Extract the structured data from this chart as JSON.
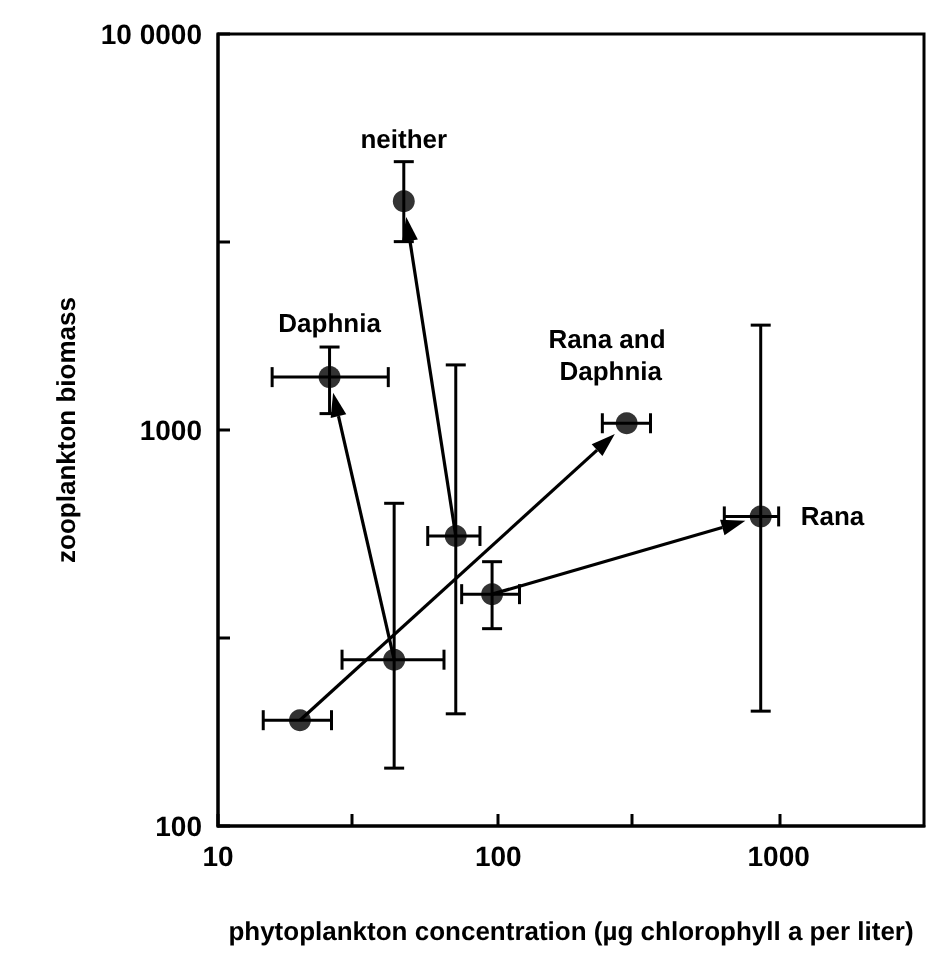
{
  "chart_data": {
    "type": "scatter",
    "xlabel": "phytoplankton concentration (µg chlorophyll a per liter)",
    "ylabel": "zooplankton biomass",
    "x": [
      46,
      25,
      287,
      863,
      70.5,
      95,
      42.5,
      19.6
    ],
    "values": [
      3780,
      1360,
      1040,
      605,
      540,
      385,
      263,
      185
    ],
    "errors": [
      [
        2990,
        4760
      ],
      [
        1100,
        1620
      ],
      null,
      [
        195,
        1840
      ],
      [
        192,
        1460
      ],
      [
        315,
        465
      ],
      [
        140,
        653
      ],
      null
    ],
    "xerrors": [
      null,
      [
        15.6,
        40.5
      ],
      [
        235,
        349
      ],
      [
        640,
        1000
      ],
      [
        56,
        86
      ],
      [
        74,
        119
      ],
      [
        27.7,
        64
      ],
      [
        14.5,
        25.4
      ]
    ],
    "color": "#000000",
    "marker": "circle",
    "log": "xy",
    "grid": false,
    "xlim": [
      10,
      3300
    ],
    "ylim": [
      100,
      10000
    ],
    "xticks": [
      10,
      {
        "value": 30,
        "label": null
      },
      100,
      {
        "value": 300,
        "label": null
      },
      1000
    ],
    "yticks": [
      100,
      {
        "value": 300,
        "label": null
      },
      1000,
      {
        "value": 3000,
        "label": null
      },
      {
        "value": 10000,
        "label": "10 0000"
      }
    ],
    "annotations": [
      {
        "text": "neither",
        "x": 46,
        "y": 3780
      },
      {
        "text": "Daphnia",
        "x": 25,
        "y": 1360
      },
      {
        "text": "Rana and Daphnia",
        "x": 287,
        "y": 1040
      },
      {
        "text": "Rana",
        "x": 863,
        "y": 605
      }
    ]
  }
}
